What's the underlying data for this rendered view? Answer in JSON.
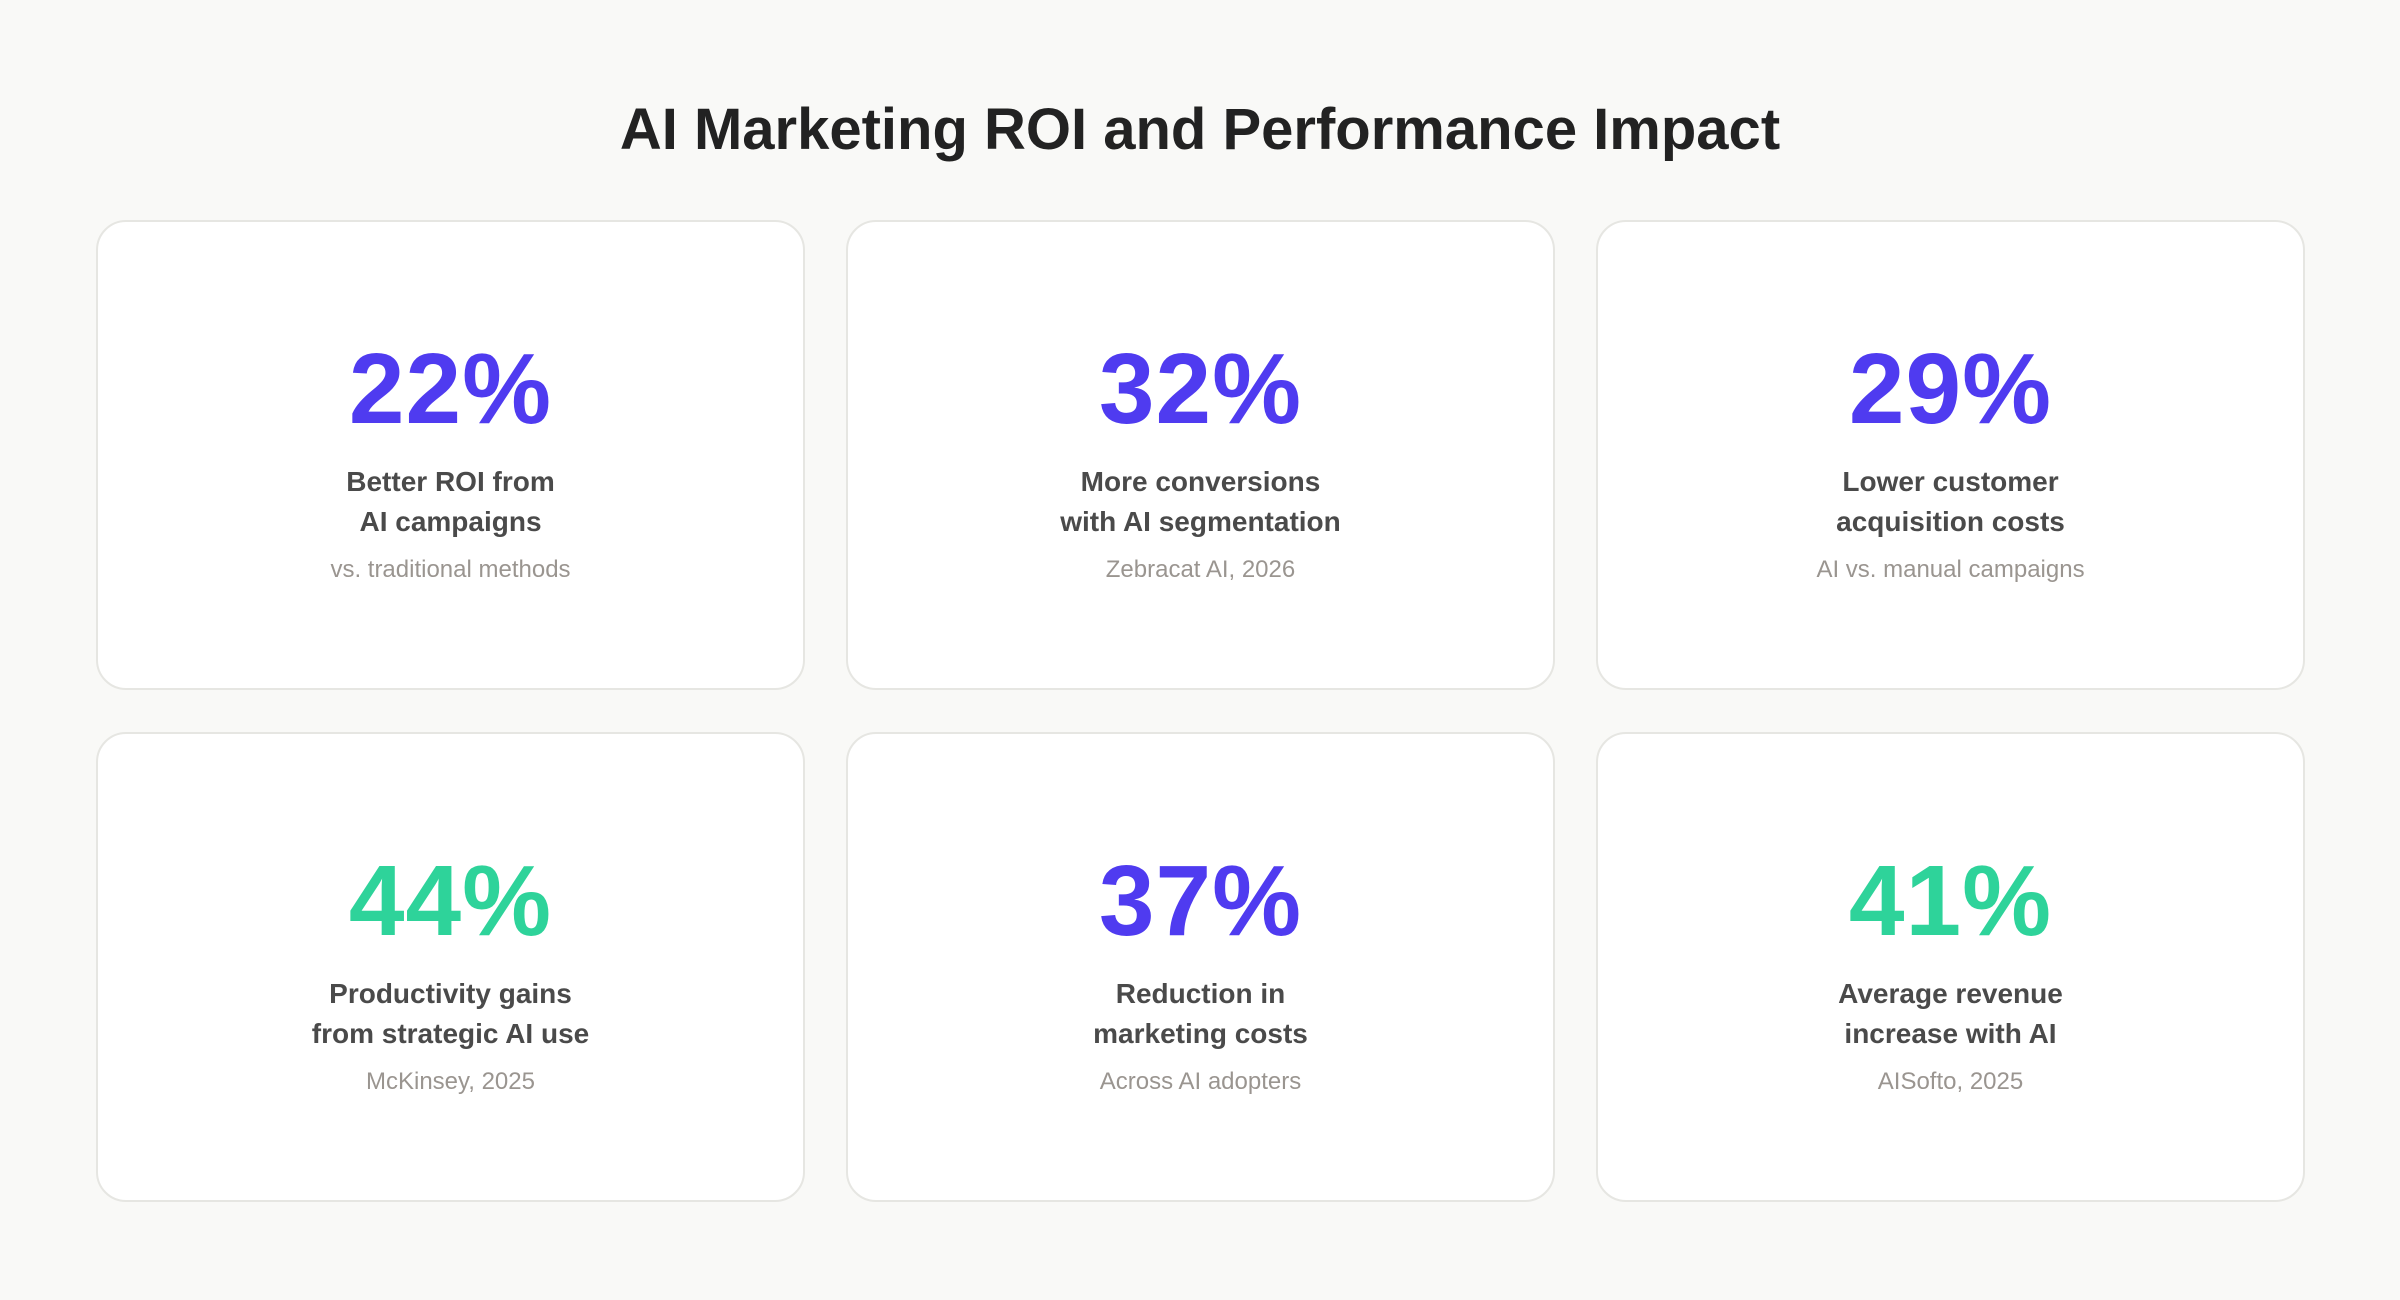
{
  "header": {
    "title": "AI Marketing ROI and Performance Impact"
  },
  "cards": [
    {
      "value": "22%",
      "color": "#4f3bf0",
      "label": [
        "Better ROI from",
        "AI campaigns"
      ],
      "source": "vs. traditional methods"
    },
    {
      "value": "32%",
      "color": "#4f3bf0",
      "label": [
        "More conversions",
        "with AI segmentation"
      ],
      "source": "Zebracat AI, 2026"
    },
    {
      "value": "29%",
      "color": "#4f3bf0",
      "label": [
        "Lower customer",
        "acquisition costs"
      ],
      "source": "AI vs. manual campaigns"
    },
    {
      "value": "44%",
      "color": "#2ed39a",
      "label": [
        "Productivity gains",
        "from strategic AI use"
      ],
      "source": "McKinsey, 2025"
    },
    {
      "value": "37%",
      "color": "#4f3bf0",
      "label": [
        "Reduction in",
        "marketing costs"
      ],
      "source": "Across AI adopters"
    },
    {
      "value": "41%",
      "color": "#2ed39a",
      "label": [
        "Average revenue",
        "increase with AI"
      ],
      "source": "AISofto, 2025"
    }
  ]
}
